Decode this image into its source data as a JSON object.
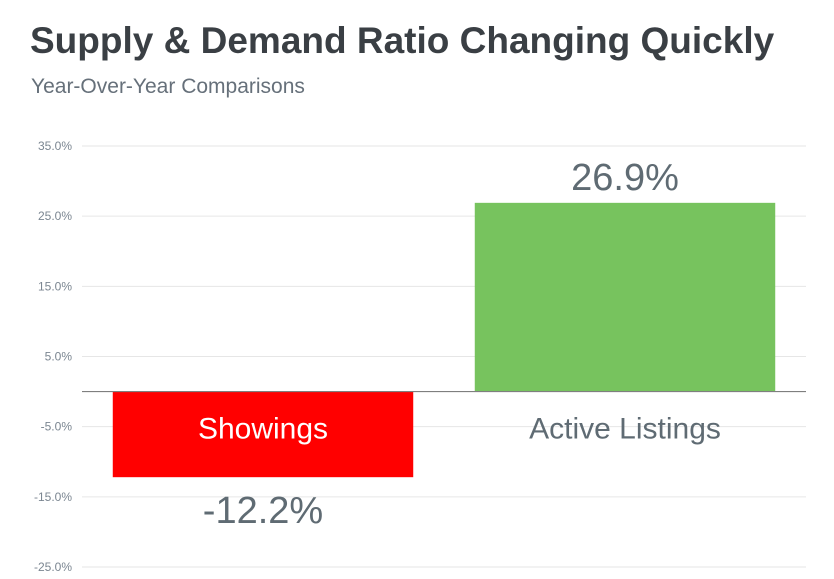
{
  "chart_data": {
    "type": "bar",
    "title": "Supply & Demand Ratio Changing Quickly",
    "subtitle": "Year-Over-Year Comparisons",
    "categories": [
      "Showings",
      "Active Listings"
    ],
    "values": [
      -12.2,
      26.9
    ],
    "data_labels": [
      "-12.2%",
      "26.9%"
    ],
    "colors": [
      "#ff0000",
      "#77c35e"
    ],
    "category_label_colors": [
      "#ffffff",
      "#5f6b73"
    ],
    "ylim": [
      -25,
      35
    ],
    "yticks": [
      35,
      25,
      15,
      5,
      -5,
      -15,
      -25
    ],
    "ytick_labels": [
      "35.0%",
      "25.0%",
      "15.0%",
      "5.0%",
      "-5.0%",
      "-15.0%",
      "-25.0%"
    ],
    "grid": true,
    "xlabel": "",
    "ylabel": ""
  }
}
